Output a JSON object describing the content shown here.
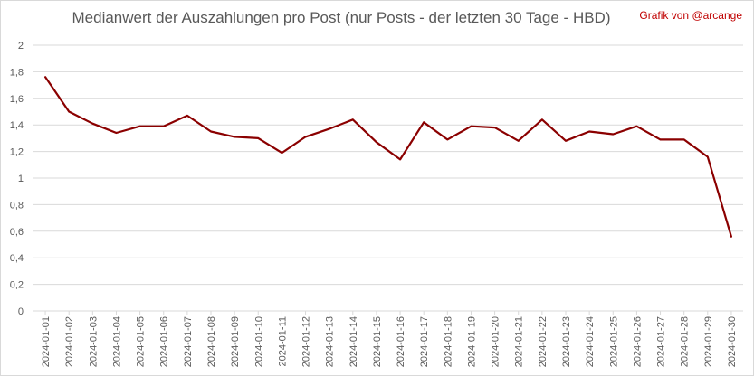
{
  "chart_data": {
    "type": "line",
    "title": "Medianwert der Auszahlungen pro Post (nur Posts - der letzten 30 Tage - HBD)",
    "credit": "Grafik von @arcange",
    "xlabel": "",
    "ylabel": "",
    "categories": [
      "2024-01-01",
      "2024-01-02",
      "2024-01-03",
      "2024-01-04",
      "2024-01-05",
      "2024-01-06",
      "2024-01-07",
      "2024-01-08",
      "2024-01-09",
      "2024-01-10",
      "2024-01-11",
      "2024-01-12",
      "2024-01-13",
      "2024-01-14",
      "2024-01-15",
      "2024-01-16",
      "2024-01-17",
      "2024-01-18",
      "2024-01-19",
      "2024-01-20",
      "2024-01-21",
      "2024-01-22",
      "2024-01-23",
      "2024-01-24",
      "2024-01-25",
      "2024-01-26",
      "2024-01-27",
      "2024-01-28",
      "2024-01-29",
      "2024-01-30"
    ],
    "series": [
      {
        "values": [
          1.76,
          1.5,
          1.41,
          1.34,
          1.39,
          1.39,
          1.47,
          1.35,
          1.31,
          1.3,
          1.19,
          1.31,
          1.37,
          1.44,
          1.27,
          1.14,
          1.42,
          1.29,
          1.39,
          1.38,
          1.28,
          1.44,
          1.28,
          1.35,
          1.33,
          1.39,
          1.29,
          1.29,
          1.16,
          0.56
        ]
      }
    ],
    "yticks": [
      "0",
      "0,2",
      "0,4",
      "0,6",
      "0,8",
      "1",
      "1,2",
      "1,4",
      "1,6",
      "1,8",
      "2"
    ],
    "ylim": [
      0,
      2
    ],
    "grid": true,
    "legend": "none"
  },
  "colors": {
    "line": "#8b0000",
    "grid": "#d9d9d9",
    "axis_text": "#595959",
    "credit": "#c00000"
  }
}
